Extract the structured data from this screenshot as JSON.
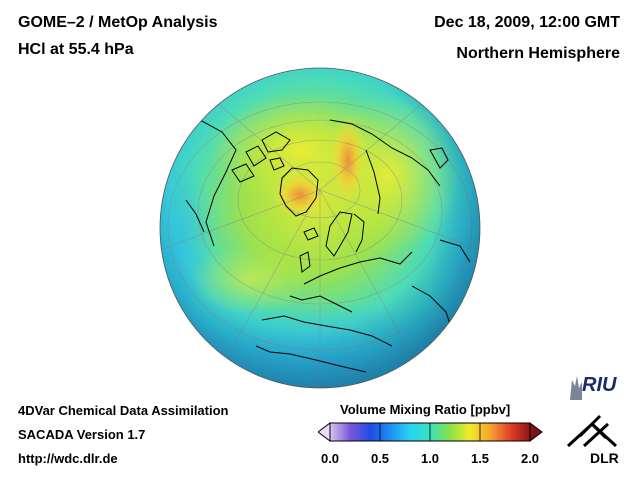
{
  "header": {
    "title": "GOME–2 / MetOp Analysis",
    "species": "HCl at 55.4 hPa",
    "datetime": "Dec 18, 2009, 12:00 GMT",
    "hemisphere": "Northern Hemisphere"
  },
  "footer": {
    "line1": "4DVar Chemical Data Assimilation",
    "line2": "SACADA Version 1.7",
    "url": "http://wdc.dlr.de"
  },
  "colorbar": {
    "label": "Volume Mixing Ratio [ppbv]",
    "ticks": [
      {
        "value": 0.0,
        "label": "0.0"
      },
      {
        "value": 0.5,
        "label": "0.5"
      },
      {
        "value": 1.0,
        "label": "1.0"
      },
      {
        "value": 1.5,
        "label": "1.5"
      },
      {
        "value": 2.0,
        "label": "2.0"
      }
    ],
    "range": [
      0.0,
      2.0
    ],
    "colors": [
      "#d8c4ef",
      "#7a5ad6",
      "#1f4be6",
      "#1f8ef2",
      "#27d3f2",
      "#35e2c0",
      "#8be045",
      "#f1ea2e",
      "#f3a52d",
      "#e5402a",
      "#8e1414"
    ]
  },
  "logos": {
    "riu": "RIU",
    "dlr": "DLR"
  },
  "map": {
    "projection": "orthographic",
    "view": "Northern Hemisphere",
    "colors": {
      "ocean_low": "#2fb7ea",
      "mid": "#36dcc6",
      "high": "#a6e23c",
      "peak": "#f0a13a",
      "coast": "#000000",
      "grid": "#8a8a8a"
    }
  }
}
